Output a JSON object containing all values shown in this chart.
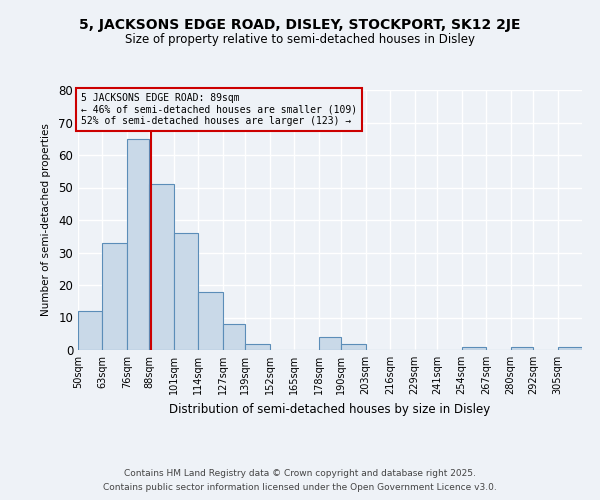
{
  "title": "5, JACKSONS EDGE ROAD, DISLEY, STOCKPORT, SK12 2JE",
  "subtitle": "Size of property relative to semi-detached houses in Disley",
  "xlabel": "Distribution of semi-detached houses by size in Disley",
  "ylabel": "Number of semi-detached properties",
  "bin_labels": [
    "50sqm",
    "63sqm",
    "76sqm",
    "88sqm",
    "101sqm",
    "114sqm",
    "127sqm",
    "139sqm",
    "152sqm",
    "165sqm",
    "178sqm",
    "190sqm",
    "203sqm",
    "216sqm",
    "229sqm",
    "241sqm",
    "254sqm",
    "267sqm",
    "280sqm",
    "292sqm",
    "305sqm"
  ],
  "bin_edges": [
    50,
    63,
    76,
    88,
    101,
    114,
    127,
    139,
    152,
    165,
    178,
    190,
    203,
    216,
    229,
    241,
    254,
    267,
    280,
    292,
    305,
    318
  ],
  "counts": [
    12,
    33,
    65,
    51,
    36,
    18,
    8,
    2,
    0,
    0,
    4,
    2,
    0,
    0,
    0,
    0,
    1,
    0,
    1,
    0,
    1
  ],
  "bar_color": "#c9d9e8",
  "bar_edge_color": "#5b8db8",
  "property_value": 89,
  "vline_color": "#cc0000",
  "annotation_title": "5 JACKSONS EDGE ROAD: 89sqm",
  "annotation_line1": "← 46% of semi-detached houses are smaller (109)",
  "annotation_line2": "52% of semi-detached houses are larger (123) →",
  "annotation_box_color": "#cc0000",
  "ylim": [
    0,
    80
  ],
  "yticks": [
    0,
    10,
    20,
    30,
    40,
    50,
    60,
    70,
    80
  ],
  "background_color": "#eef2f7",
  "grid_color": "#ffffff",
  "footer1": "Contains HM Land Registry data © Crown copyright and database right 2025.",
  "footer2": "Contains public sector information licensed under the Open Government Licence v3.0."
}
